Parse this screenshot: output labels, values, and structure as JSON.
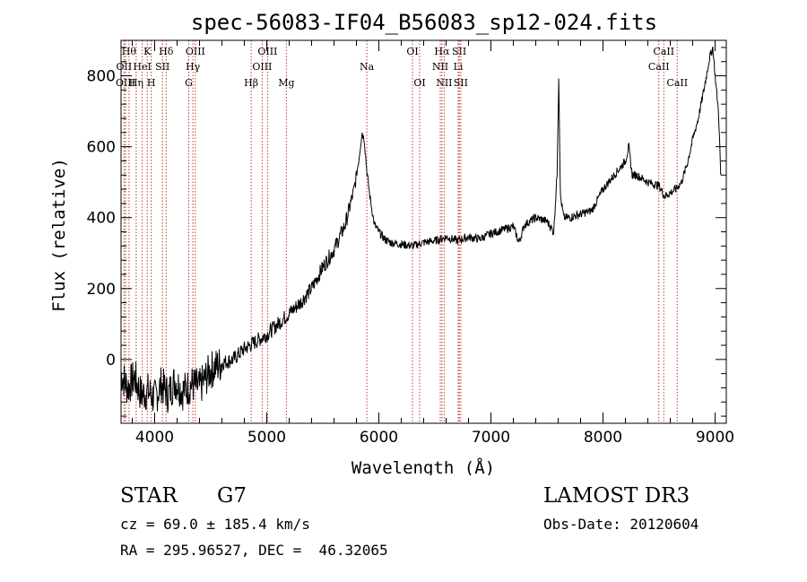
{
  "chart_data": {
    "type": "line",
    "title": "spec-56083-IF04_B56083_sp12-024.fits",
    "xlabel": "Wavelength (Å)",
    "ylabel": "Flux (relative)",
    "xlim": [
      3700,
      9100
    ],
    "ylim": [
      -180,
      900
    ],
    "xticks": [
      4000,
      5000,
      6000,
      7000,
      8000,
      9000
    ],
    "xtick_labels": [
      "4000",
      "5000",
      "6000",
      "7000",
      "8000",
      "9000"
    ],
    "yticks": [
      0,
      200,
      400,
      600,
      800
    ],
    "ytick_labels": [
      "0",
      "200",
      "400",
      "600",
      "800"
    ],
    "series": [
      {
        "name": "spectrum",
        "x": [
          3700,
          3760,
          3820,
          3880,
          3940,
          4000,
          4060,
          4120,
          4180,
          4250,
          4330,
          4400,
          4500,
          4600,
          4700,
          4800,
          4900,
          5000,
          5100,
          5200,
          5300,
          5400,
          5500,
          5600,
          5700,
          5780,
          5820,
          5850,
          5870,
          5890,
          5920,
          5960,
          6000,
          6050,
          6100,
          6200,
          6300,
          6400,
          6500,
          6560,
          6600,
          6700,
          6800,
          6900,
          7000,
          7100,
          7200,
          7250,
          7300,
          7400,
          7500,
          7560,
          7590,
          7605,
          7620,
          7650,
          7700,
          7800,
          7900,
          8000,
          8100,
          8200,
          8230,
          8260,
          8300,
          8400,
          8500,
          8550,
          8600,
          8650,
          8700,
          8750,
          8800,
          8850,
          8900,
          8950,
          8980,
          9000,
          9030,
          9050
        ],
        "y": [
          -40,
          -80,
          -50,
          -100,
          -90,
          -110,
          -70,
          -100,
          -60,
          -90,
          -70,
          -80,
          -30,
          -10,
          0,
          30,
          50,
          70,
          100,
          130,
          160,
          200,
          260,
          310,
          380,
          480,
          560,
          640,
          620,
          540,
          460,
          380,
          360,
          340,
          330,
          325,
          320,
          330,
          335,
          340,
          345,
          335,
          345,
          340,
          355,
          365,
          375,
          330,
          380,
          400,
          390,
          360,
          520,
          800,
          460,
          400,
          400,
          410,
          420,
          480,
          520,
          560,
          600,
          520,
          520,
          500,
          490,
          460,
          470,
          480,
          500,
          550,
          620,
          680,
          760,
          850,
          880,
          800,
          700,
          520
        ]
      }
    ],
    "line_markers": [
      {
        "label": "Hθ",
        "x": 3771,
        "row": 1
      },
      {
        "label": "OII",
        "x": 3727,
        "row": 2
      },
      {
        "label": "OIII",
        "x": 3740,
        "row": 3
      },
      {
        "label": "K",
        "x": 3934,
        "row": 1
      },
      {
        "label": "HeI",
        "x": 3889,
        "row": 2
      },
      {
        "label": "Hη",
        "x": 3835,
        "row": 3
      },
      {
        "label": "SII",
        "x": 4070,
        "row": 2
      },
      {
        "label": "H",
        "x": 3969,
        "row": 3
      },
      {
        "label": "Hδ",
        "x": 4102,
        "row": 1
      },
      {
        "label": "OIII",
        "x": 4363,
        "row": 1
      },
      {
        "label": "Hγ",
        "x": 4341,
        "row": 2
      },
      {
        "label": "G",
        "x": 4304,
        "row": 3
      },
      {
        "label": "OIII",
        "x": 5007,
        "row": 1
      },
      {
        "label": "OIII",
        "x": 4959,
        "row": 2
      },
      {
        "label": "Hβ",
        "x": 4861,
        "row": 3
      },
      {
        "label": "Mg",
        "x": 5175,
        "row": 3
      },
      {
        "label": "Na",
        "x": 5893,
        "row": 2
      },
      {
        "label": "OI",
        "x": 6300,
        "row": 1
      },
      {
        "label": "OI",
        "x": 6364,
        "row": 3
      },
      {
        "label": "Hα",
        "x": 6563,
        "row": 1
      },
      {
        "label": "NII",
        "x": 6548,
        "row": 2
      },
      {
        "label": "NII",
        "x": 6583,
        "row": 3
      },
      {
        "label": "SII",
        "x": 6717,
        "row": 1
      },
      {
        "label": "Li",
        "x": 6708,
        "row": 2
      },
      {
        "label": "SII",
        "x": 6731,
        "row": 3
      },
      {
        "label": "CaII",
        "x": 8542,
        "row": 1
      },
      {
        "label": "CaII",
        "x": 8498,
        "row": 2
      },
      {
        "label": "CaII",
        "x": 8662,
        "row": 3
      }
    ]
  },
  "info": {
    "object_class": "STAR",
    "subclass": "G7",
    "survey": "LAMOST DR3",
    "redshift": "cz = 69.0 ± 185.4 km/s",
    "obs_date": "Obs-Date: 20120604",
    "coords": "RA = 295.96527, DEC =  46.32065"
  }
}
